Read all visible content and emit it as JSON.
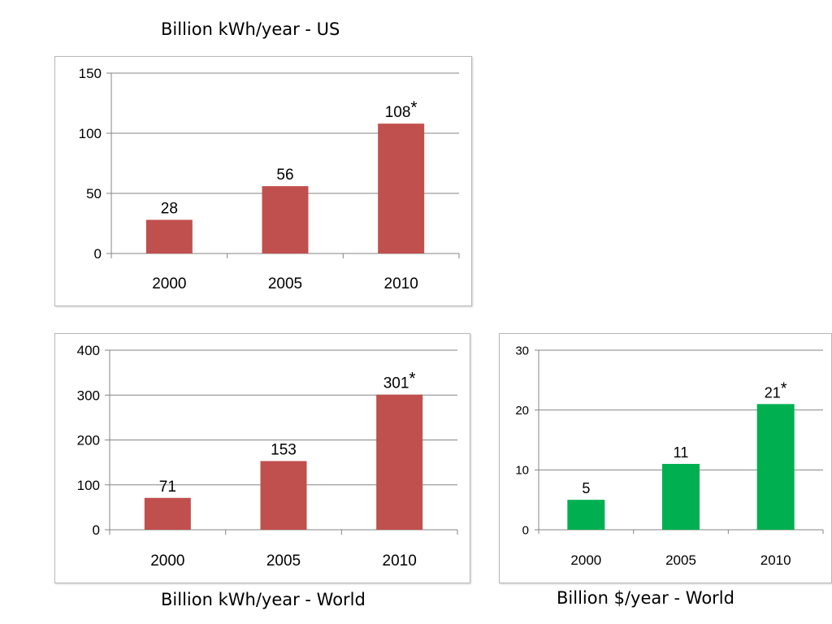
{
  "captions": {
    "us": "Billion kWh/year - US",
    "world": "Billion kWh/year - World",
    "dollar": "Billion $/year - World"
  },
  "chart_data": [
    {
      "id": "us",
      "type": "bar",
      "title": "Billion kWh/year - US",
      "xlabel": "",
      "ylabel": "",
      "categories": [
        "2000",
        "2005",
        "2010"
      ],
      "values": [
        28,
        56,
        108
      ],
      "data_labels": [
        "28",
        "56",
        "108"
      ],
      "starred": [
        false,
        false,
        true
      ],
      "ylim": [
        0,
        150
      ],
      "yticks": [
        0,
        50,
        100,
        150
      ],
      "grid": true,
      "color": "#c0504d"
    },
    {
      "id": "world",
      "type": "bar",
      "title": "Billion kWh/year - World",
      "xlabel": "",
      "ylabel": "",
      "categories": [
        "2000",
        "2005",
        "2010"
      ],
      "values": [
        71,
        153,
        301
      ],
      "data_labels": [
        "71",
        "153",
        "301"
      ],
      "starred": [
        false,
        false,
        true
      ],
      "ylim": [
        0,
        400
      ],
      "yticks": [
        0,
        100,
        200,
        300,
        400
      ],
      "grid": true,
      "color": "#c0504d"
    },
    {
      "id": "dollar",
      "type": "bar",
      "title": "Billion $/year - World",
      "xlabel": "",
      "ylabel": "",
      "categories": [
        "2000",
        "2005",
        "2010"
      ],
      "values": [
        5,
        11,
        21
      ],
      "data_labels": [
        "5",
        "11",
        "21"
      ],
      "starred": [
        false,
        false,
        true
      ],
      "ylim": [
        0,
        30
      ],
      "yticks": [
        0,
        10,
        20,
        30
      ],
      "grid": true,
      "color": "#00b050"
    }
  ],
  "star_symbol": "*"
}
